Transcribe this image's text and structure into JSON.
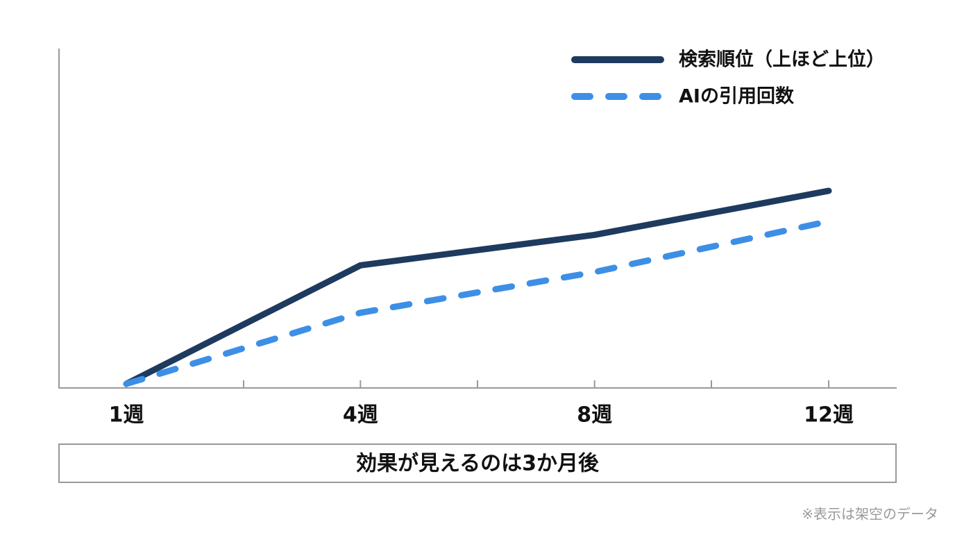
{
  "chart_data": {
    "type": "line",
    "categories": [
      "1週",
      "4週",
      "8週",
      "12週"
    ],
    "series": [
      {
        "name": "検索順位（上ほど上位）",
        "color": "#1e3a5f",
        "dashed": false,
        "values": [
          1,
          36,
          45,
          58
        ]
      },
      {
        "name": "AIの引用回数",
        "color": "#3d8fe6",
        "dashed": true,
        "values": [
          1,
          22,
          34,
          49
        ]
      }
    ],
    "ylim": [
      0,
      100
    ],
    "annotation": "効果が見えるのは3か月後",
    "footnote": "※表示は架空のデータ",
    "legend": "top-right"
  }
}
